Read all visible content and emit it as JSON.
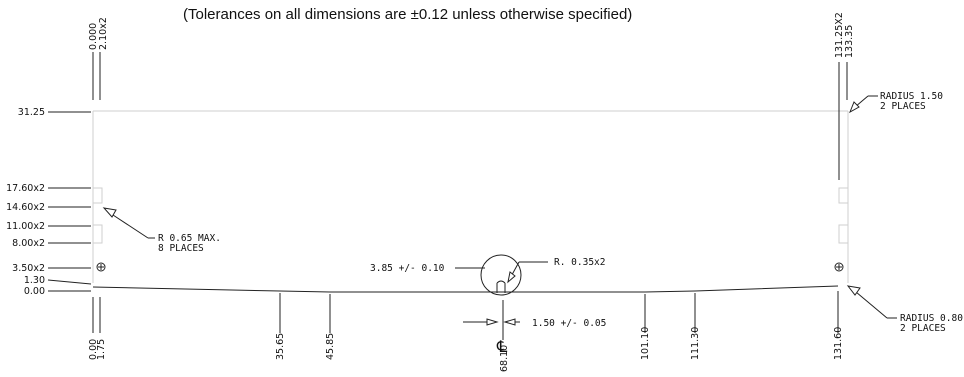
{
  "header_note": "(Tolerances on all dimensions are ±0.12 unless otherwise specified)",
  "left_dimensions": [
    "31.25",
    "17.60x2",
    "14.60x2",
    "11.00x2",
    "8.00x2",
    "3.50x2",
    "1.30",
    "0.00"
  ],
  "top_left_dimensions": [
    "0.000",
    "2.10x2"
  ],
  "top_right_dimensions": [
    "131.25X2",
    "133.35"
  ],
  "bottom_dimensions": [
    "0.00",
    "1.75",
    "35.65",
    "45.85",
    "68.10",
    "101.10",
    "111.30",
    "131.60"
  ],
  "callouts": {
    "radius_top": [
      "RADIUS 1.50",
      "2 PLACES"
    ],
    "radius_bottom": [
      "RADIUS 0.80",
      "2 PLACES"
    ],
    "r_max": [
      "R 0.65 MAX.",
      "8 PLACES"
    ],
    "slot_height": "3.85 +/- 0.10",
    "slot_radius": "R. 0.35x2",
    "slot_width": "1.50 +/- 0.05"
  },
  "centerline_symbol": "℄"
}
